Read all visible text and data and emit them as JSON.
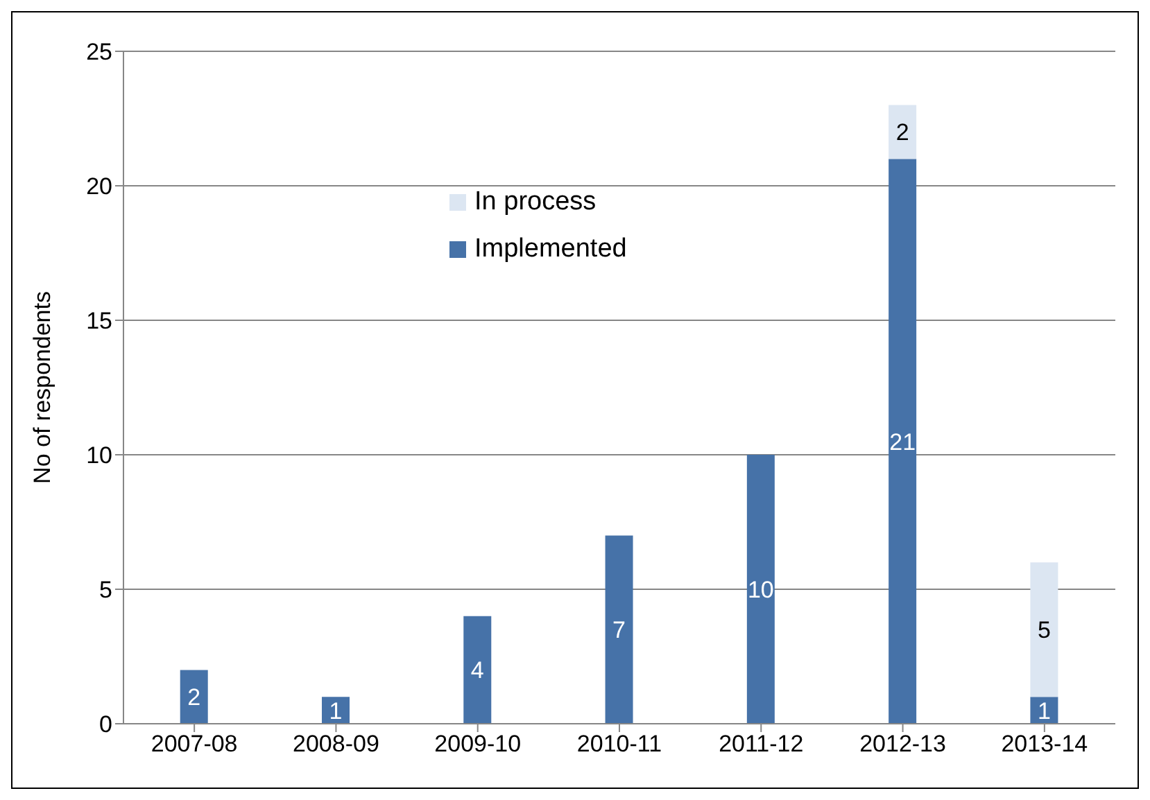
{
  "chart_data": {
    "type": "bar",
    "stacked": true,
    "ylabel": "No of respondents",
    "categories": [
      "2007-08",
      "2008-09",
      "2009-10",
      "2010-11",
      "2011-12",
      "2012-13",
      "2013-14"
    ],
    "series": [
      {
        "name": "Implemented",
        "color": "#4672a8",
        "values": [
          2,
          1,
          4,
          7,
          10,
          21,
          1
        ]
      },
      {
        "name": "In process",
        "color": "#dce6f2",
        "values": [
          null,
          null,
          null,
          null,
          null,
          2,
          5
        ]
      }
    ],
    "ylim": [
      0,
      25
    ],
    "yticks": [
      0,
      5,
      10,
      15,
      20,
      25
    ],
    "grid": "y",
    "legend": "top",
    "data_labels": true
  }
}
